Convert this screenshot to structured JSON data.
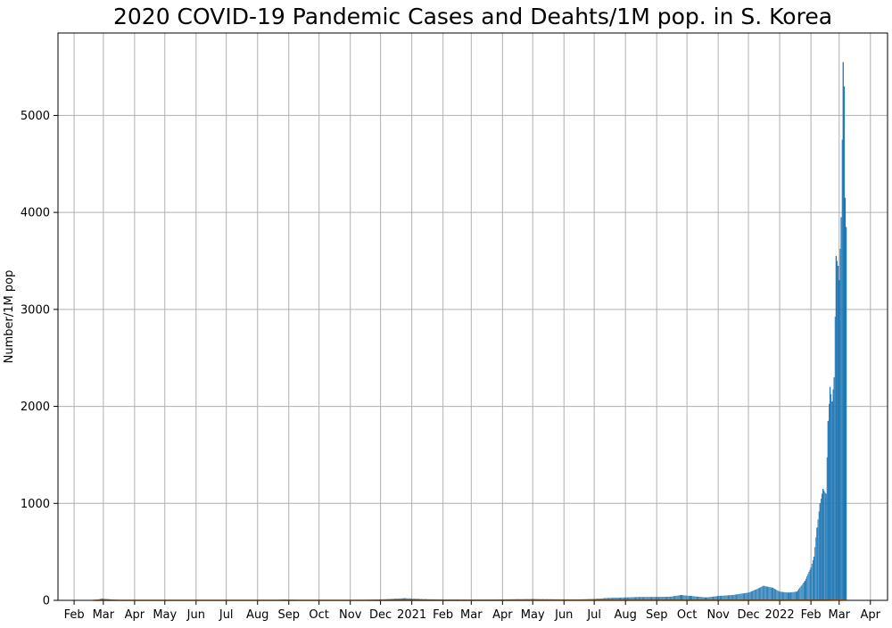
{
  "chart_data": {
    "type": "bar",
    "title": "2020 COVID-19 Pandemic Cases and Deahts/1M pop. in S. Korea",
    "xlabel": "",
    "ylabel": "Number/1M pop",
    "ylim": [
      0,
      5850
    ],
    "xlim": [
      "2020-01-16",
      "2022-04-18"
    ],
    "grid": true,
    "yticks": [
      0,
      1000,
      2000,
      3000,
      4000,
      5000
    ],
    "xticks": [
      {
        "date": "2020-02-01",
        "label": "Feb"
      },
      {
        "date": "2020-03-01",
        "label": "Mar"
      },
      {
        "date": "2020-04-01",
        "label": "Apr"
      },
      {
        "date": "2020-05-01",
        "label": "May"
      },
      {
        "date": "2020-06-01",
        "label": "Jun"
      },
      {
        "date": "2020-07-01",
        "label": "Jul"
      },
      {
        "date": "2020-08-01",
        "label": "Aug"
      },
      {
        "date": "2020-09-01",
        "label": "Sep"
      },
      {
        "date": "2020-10-01",
        "label": "Oct"
      },
      {
        "date": "2020-11-01",
        "label": "Nov"
      },
      {
        "date": "2020-12-01",
        "label": "Dec"
      },
      {
        "date": "2021-01-01",
        "label": "2021"
      },
      {
        "date": "2021-02-01",
        "label": "Feb"
      },
      {
        "date": "2021-03-01",
        "label": "Mar"
      },
      {
        "date": "2021-04-01",
        "label": "Apr"
      },
      {
        "date": "2021-05-01",
        "label": "May"
      },
      {
        "date": "2021-06-01",
        "label": "Jun"
      },
      {
        "date": "2021-07-01",
        "label": "Jul"
      },
      {
        "date": "2021-08-01",
        "label": "Aug"
      },
      {
        "date": "2021-09-01",
        "label": "Sep"
      },
      {
        "date": "2021-10-01",
        "label": "Oct"
      },
      {
        "date": "2021-11-01",
        "label": "Nov"
      },
      {
        "date": "2021-12-01",
        "label": "Dec"
      },
      {
        "date": "2022-01-01",
        "label": "2022"
      },
      {
        "date": "2022-02-01",
        "label": "Feb"
      },
      {
        "date": "2022-03-01",
        "label": "Mar"
      },
      {
        "date": "2022-04-01",
        "label": "Apr"
      }
    ],
    "series": [
      {
        "color": "#1f77b4",
        "style": "bars",
        "points": [
          [
            "2020-02-20",
            1
          ],
          [
            "2020-02-29",
            18
          ],
          [
            "2020-03-15",
            5
          ],
          [
            "2020-04-15",
            1
          ],
          [
            "2020-05-15",
            1
          ],
          [
            "2020-06-15",
            1
          ],
          [
            "2020-07-15",
            1
          ],
          [
            "2020-08-15",
            2
          ],
          [
            "2020-08-27",
            8
          ],
          [
            "2020-09-15",
            3
          ],
          [
            "2020-10-15",
            2
          ],
          [
            "2020-11-15",
            5
          ],
          [
            "2020-12-01",
            10
          ],
          [
            "2020-12-25",
            22
          ],
          [
            "2021-01-15",
            12
          ],
          [
            "2021-02-15",
            8
          ],
          [
            "2021-03-15",
            8
          ],
          [
            "2021-04-15",
            12
          ],
          [
            "2021-05-01",
            14
          ],
          [
            "2021-05-15",
            12
          ],
          [
            "2021-06-15",
            10
          ],
          [
            "2021-07-01",
            15
          ],
          [
            "2021-07-15",
            25
          ],
          [
            "2021-08-01",
            30
          ],
          [
            "2021-08-15",
            35
          ],
          [
            "2021-09-01",
            35
          ],
          [
            "2021-09-15",
            38
          ],
          [
            "2021-09-25",
            55
          ],
          [
            "2021-10-05",
            45
          ],
          [
            "2021-10-20",
            30
          ],
          [
            "2021-11-01",
            45
          ],
          [
            "2021-11-15",
            55
          ],
          [
            "2021-12-01",
            80
          ],
          [
            "2021-12-08",
            110
          ],
          [
            "2021-12-16",
            150
          ],
          [
            "2021-12-25",
            130
          ],
          [
            "2022-01-01",
            90
          ],
          [
            "2022-01-10",
            80
          ],
          [
            "2022-01-18",
            90
          ],
          [
            "2022-01-26",
            200
          ],
          [
            "2022-02-01",
            340
          ],
          [
            "2022-02-04",
            450
          ],
          [
            "2022-02-07",
            750
          ],
          [
            "2022-02-10",
            1000
          ],
          [
            "2022-02-13",
            1150
          ],
          [
            "2022-02-16",
            1100
          ],
          [
            "2022-02-18",
            1850
          ],
          [
            "2022-02-20",
            2200
          ],
          [
            "2022-02-22",
            2050
          ],
          [
            "2022-02-24",
            2300
          ],
          [
            "2022-02-26",
            3550
          ],
          [
            "2022-02-28",
            3450
          ],
          [
            "2022-03-01",
            3300
          ],
          [
            "2022-03-03",
            3950
          ],
          [
            "2022-03-05",
            5550
          ],
          [
            "2022-03-06",
            5300
          ],
          [
            "2022-03-07",
            4150
          ],
          [
            "2022-03-08",
            3850
          ]
        ]
      },
      {
        "color": "#ff7f0e",
        "style": "line",
        "points": [
          [
            "2020-02-20",
            0
          ],
          [
            "2021-01-01",
            0.4
          ],
          [
            "2021-12-20",
            1.5
          ],
          [
            "2022-02-15",
            1.0
          ],
          [
            "2022-03-08",
            3.5
          ]
        ]
      }
    ]
  }
}
